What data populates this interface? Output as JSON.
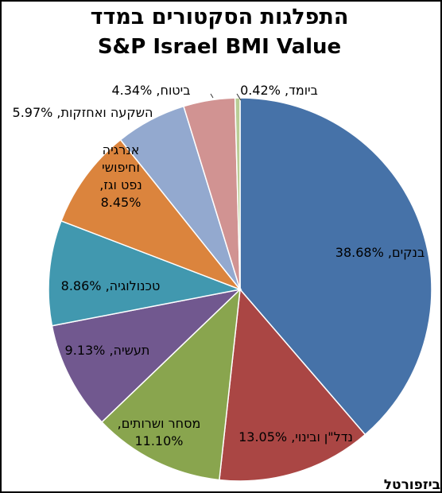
{
  "chart_data": {
    "type": "pie",
    "title": "התפלגות הסקטורים במדד",
    "subtitle": "S&P Israel BMI Value",
    "slices": [
      {
        "label": "בנקים",
        "value": 38.68,
        "text": "בנקים, 38.68%",
        "color": "#4672A8"
      },
      {
        "label": "נדל\"ן ובינוי",
        "value": 13.05,
        "text": "נדל\"ן ובינוי, 13.05%",
        "color": "#AA4644"
      },
      {
        "label": "מסחר ושרותים",
        "value": 11.1,
        "text": "מסחר ושרותים, 11.10%",
        "color": "#89A54E"
      },
      {
        "label": "תעשיה",
        "value": 9.13,
        "text": "תעשיה, 9.13%",
        "color": "#71588F"
      },
      {
        "label": "טכנולוגיה",
        "value": 8.86,
        "text": "טכנולוגיה, 8.86%",
        "color": "#4198AF"
      },
      {
        "label": "אנרגיה וחיפושי נפט וגז",
        "value": 8.45,
        "text": "אנרגיה וחיפושי נפט וגז, 8.45%",
        "color": "#DB843D"
      },
      {
        "label": "השקעה ואחזקות",
        "value": 5.97,
        "text": "השקעה ואחזקות, 5.97%",
        "color": "#93A9CF"
      },
      {
        "label": "ביטוח",
        "value": 4.34,
        "text": "ביטוח, 4.34%",
        "color": "#D19392"
      },
      {
        "label": "ביומד",
        "value": 0.42,
        "text": "ביומד, 0.42%",
        "color": "#B9CD96"
      }
    ],
    "start": "12 o'clock",
    "direction": "clockwise",
    "legend": "none"
  },
  "credit": "ביזפורטל"
}
